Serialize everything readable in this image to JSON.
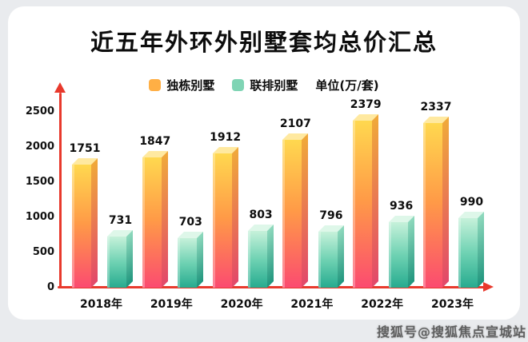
{
  "title": "近五年外环外别墅套均总价汇总",
  "legend": {
    "detached_label": "独栋别墅",
    "townhouse_label": "联排别墅",
    "unit_label": "单位(万/套)"
  },
  "watermark": "搜狐号@搜狐焦点宣城站",
  "colors": {
    "axis": "#e8392c",
    "legend_detached": "#ffaf45",
    "legend_townhouse": "#7fd4b4",
    "detached_gradient_top": "#ffd84f",
    "detached_gradient_bottom": "#fb4b70",
    "townhouse_gradient_top": "#c6f1da",
    "townhouse_gradient_bottom": "#27ab8f",
    "card_background": "#ffffff",
    "page_background": "#e9ebee"
  },
  "chart_data": {
    "type": "bar",
    "title": "近五年外环外别墅套均总价汇总",
    "categories": [
      "2018年",
      "2019年",
      "2020年",
      "2021年",
      "2022年",
      "2023年"
    ],
    "series": [
      {
        "name": "独栋别墅",
        "values": [
          1751,
          1847,
          1912,
          2107,
          2379,
          2337
        ]
      },
      {
        "name": "联排别墅",
        "values": [
          731,
          703,
          803,
          796,
          936,
          990
        ]
      }
    ],
    "xlabel": "",
    "ylabel": "单位(万/套)",
    "ylim": [
      0,
      2500
    ],
    "yticks": [
      0,
      500,
      1000,
      1500,
      2000,
      2500
    ],
    "grid": false,
    "legend_position": "top"
  }
}
